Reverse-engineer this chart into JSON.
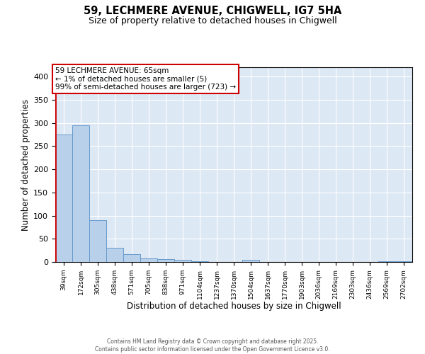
{
  "title1": "59, LECHMERE AVENUE, CHIGWELL, IG7 5HA",
  "title2": "Size of property relative to detached houses in Chigwell",
  "xlabel": "Distribution of detached houses by size in Chigwell",
  "ylabel": "Number of detached properties",
  "annotation_line1": "59 LECHMERE AVENUE: 65sqm",
  "annotation_line2": "← 1% of detached houses are smaller (5)",
  "annotation_line3": "99% of semi-detached houses are larger (723) →",
  "bar_labels": [
    "39sqm",
    "172sqm",
    "305sqm",
    "438sqm",
    "571sqm",
    "705sqm",
    "838sqm",
    "971sqm",
    "1104sqm",
    "1237sqm",
    "1370sqm",
    "1504sqm",
    "1637sqm",
    "1770sqm",
    "1903sqm",
    "2036sqm",
    "2169sqm",
    "2303sqm",
    "2436sqm",
    "2569sqm",
    "2702sqm"
  ],
  "bar_values": [
    275,
    295,
    90,
    31,
    17,
    8,
    6,
    4,
    2,
    0,
    0,
    5,
    0,
    0,
    0,
    0,
    0,
    0,
    0,
    2,
    2
  ],
  "bar_color": "#b8d0ea",
  "bar_edge_color": "#6699cc",
  "vline_color": "#cc0000",
  "annotation_box_edge_color": "#cc0000",
  "ylim_max": 420,
  "yticks": [
    0,
    50,
    100,
    150,
    200,
    250,
    300,
    350,
    400
  ],
  "plot_bg_color": "#dde8f5",
  "footer": "Contains HM Land Registry data © Crown copyright and database right 2025.\nContains public sector information licensed under the Open Government Licence v3.0."
}
